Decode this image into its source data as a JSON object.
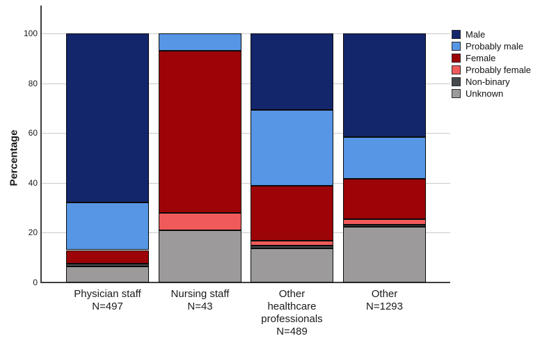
{
  "chart_data": {
    "type": "bar",
    "stacked": true,
    "title": "",
    "ylabel": "Percentage",
    "xlabel": "",
    "ylim": [
      0,
      100
    ],
    "yticks": [
      0,
      20,
      40,
      60,
      80,
      100
    ],
    "grid": true,
    "legend_position": "top-right",
    "categories": [
      {
        "name": "Physician staff",
        "n": 497,
        "display_lines": [
          "Physician staff",
          "N=497"
        ]
      },
      {
        "name": "Nursing staff",
        "n": 43,
        "display_lines": [
          "Nursing staff",
          "N=43"
        ]
      },
      {
        "name": "Other healthcare professionals",
        "n": 489,
        "display_lines": [
          "Other",
          "healthcare",
          "professionals",
          "N=489"
        ]
      },
      {
        "name": "Other",
        "n": 1293,
        "display_lines": [
          "Other",
          "N=1293"
        ]
      }
    ],
    "series": [
      {
        "name": "Male",
        "color": "#13266b",
        "values": [
          68.0,
          0.0,
          30.8,
          41.5
        ]
      },
      {
        "name": "Probably male",
        "color": "#5795e5",
        "values": [
          19.0,
          7.0,
          30.3,
          16.8
        ]
      },
      {
        "name": "Female",
        "color": "#9c0407",
        "values": [
          5.5,
          65.1,
          22.1,
          16.2
        ]
      },
      {
        "name": "Probably female",
        "color": "#f05a5a",
        "values": [
          0.0,
          7.0,
          1.9,
          2.3
        ]
      },
      {
        "name": "Non-binary",
        "color": "#474a4d",
        "values": [
          1.1,
          0.0,
          1.2,
          0.9
        ]
      },
      {
        "name": "Unknown",
        "color": "#9c9a9a",
        "values": [
          6.4,
          20.9,
          13.7,
          22.3
        ]
      }
    ]
  },
  "colors": {
    "gridline": "#c9c9c9",
    "axis": "#3d3d3d",
    "segment_border": "#0a0a0a",
    "text": "#1a1a1a"
  }
}
